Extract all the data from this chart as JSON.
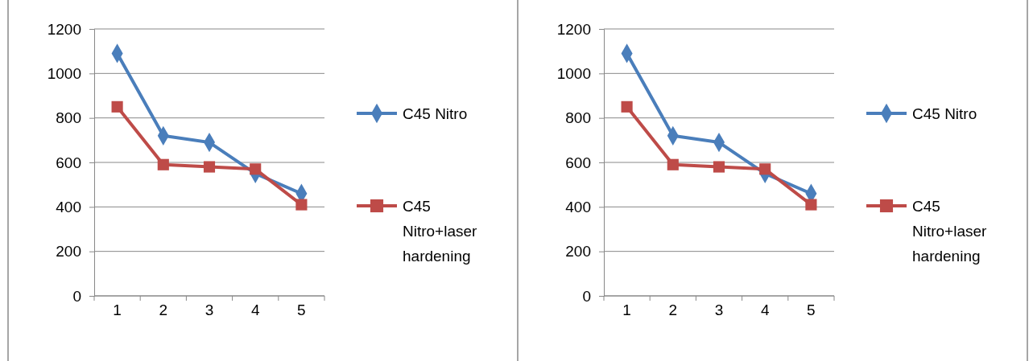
{
  "chart_data": [
    {
      "type": "line",
      "categories": [
        "1",
        "2",
        "3",
        "4",
        "5"
      ],
      "ylim": [
        0,
        1200
      ],
      "yticks": [
        0,
        200,
        400,
        600,
        800,
        1000,
        1200
      ],
      "grid": "y",
      "legend": "right",
      "series": [
        {
          "name": "C45 Nitro",
          "color": "#4a7ebb",
          "marker": "diamond",
          "values": [
            1090,
            720,
            690,
            550,
            460
          ]
        },
        {
          "name": "C45 Nitro+laser hardening",
          "color": "#be4b48",
          "marker": "square",
          "values": [
            850,
            590,
            580,
            570,
            410
          ]
        }
      ]
    },
    {
      "type": "line",
      "categories": [
        "1",
        "2",
        "3",
        "4",
        "5"
      ],
      "ylim": [
        0,
        1200
      ],
      "yticks": [
        0,
        200,
        400,
        600,
        800,
        1000,
        1200
      ],
      "grid": "y",
      "legend": "right",
      "series": [
        {
          "name": "C45 Nitro",
          "color": "#4a7ebb",
          "marker": "diamond",
          "values": [
            1090,
            720,
            690,
            550,
            460
          ]
        },
        {
          "name": "C45 Nitro+laser hardening",
          "color": "#be4b48",
          "marker": "square",
          "values": [
            850,
            590,
            580,
            570,
            410
          ]
        }
      ]
    }
  ]
}
